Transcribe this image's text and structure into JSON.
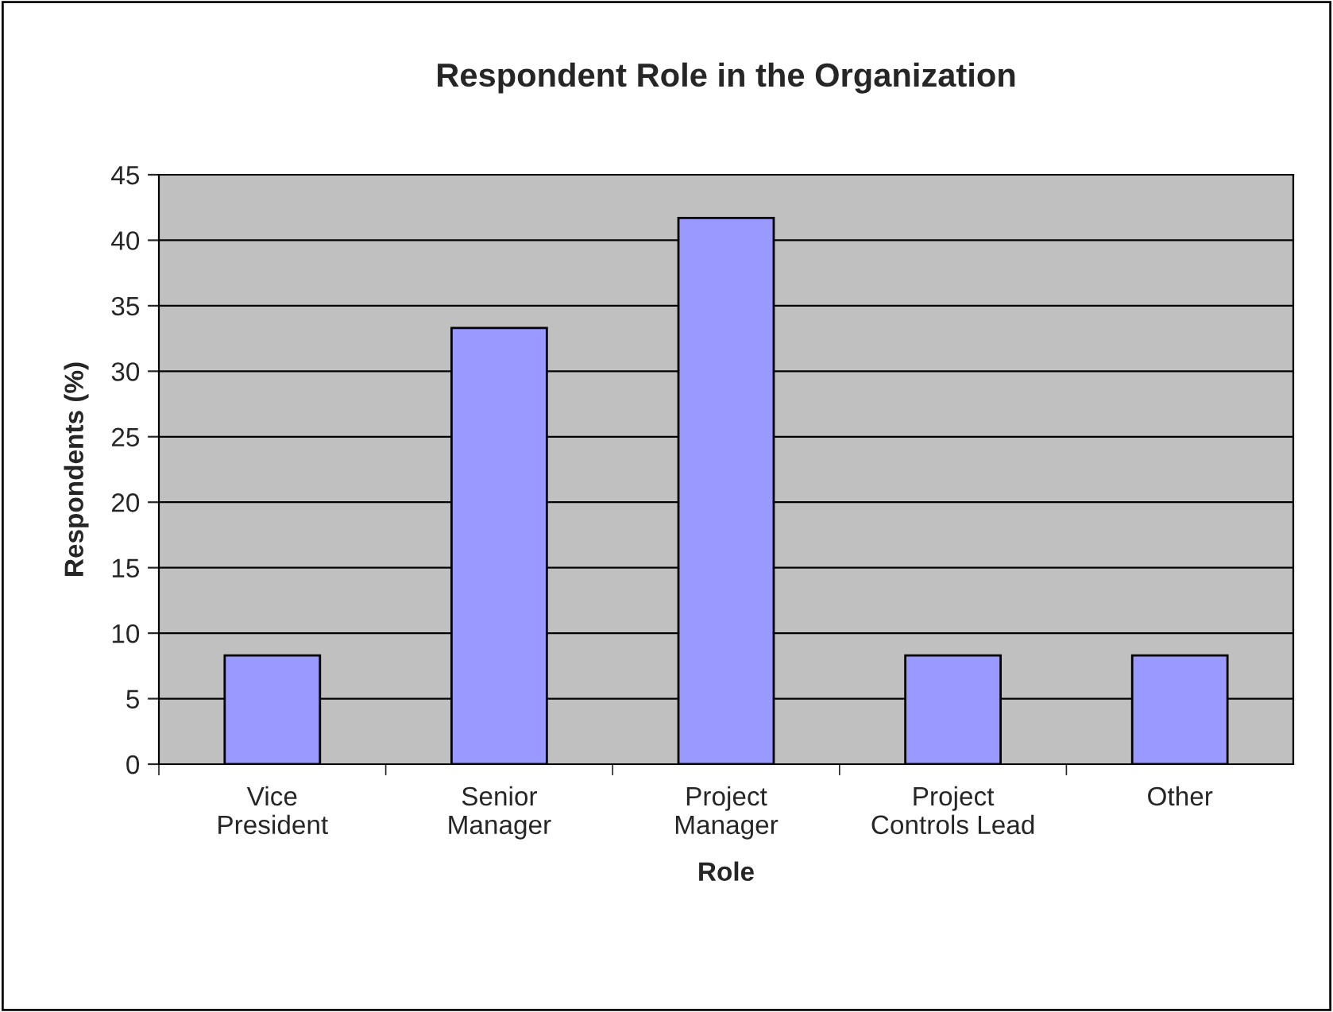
{
  "chart_data": {
    "type": "bar",
    "title": "Respondent Role in the Organization",
    "xlabel": "Role",
    "ylabel": "Respondents (%)",
    "categories": [
      "Vice\nPresident",
      "Senior\nManager",
      "Project\nManager",
      "Project\nControls Lead",
      "Other"
    ],
    "values": [
      8.3,
      33.3,
      41.7,
      8.3,
      8.3
    ],
    "color": "#9999ff",
    "ylim": [
      0,
      45
    ],
    "yticks": [
      0,
      5,
      10,
      15,
      20,
      25,
      30,
      35,
      40,
      45
    ],
    "grid": "y",
    "legend": false
  }
}
